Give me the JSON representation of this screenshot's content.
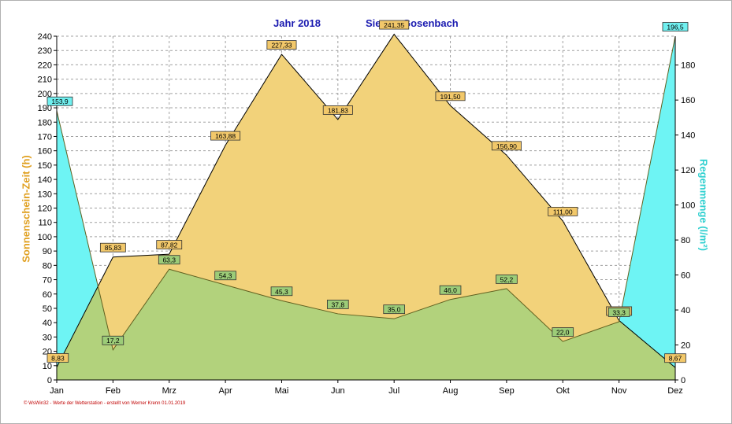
{
  "title": {
    "year": "Jahr  2018",
    "station": "Siegen-Gosenbach"
  },
  "footer": "© WsWin32  -  Werte der Wetterstation  -  erstellt von Werner Krenn   01.01.2019",
  "colors": {
    "sun_fill": "#f2d27a",
    "rain_fill": "#6ef4f4",
    "overlap_fill": "#b2d27c",
    "sun_label_bg": "#f2c86a",
    "rain_label_bg": "#70f0f0",
    "green_label_bg": "#9ccc78",
    "grid": "#a0a0a0",
    "left_axis_label": "#e0a020",
    "right_axis_label": "#30d0d0"
  },
  "chart_data": {
    "type": "area",
    "x": [
      "Jan",
      "Feb",
      "Mrz",
      "Apr",
      "Mai",
      "Jun",
      "Jul",
      "Aug",
      "Sep",
      "Okt",
      "Nov",
      "Dez"
    ],
    "ylabel_left": "Sonnenschein-Zeit  (h)",
    "ylabel_right": "Regenmenge  (l/m²)",
    "ylim_left": [
      0,
      240
    ],
    "ylim_right": [
      0,
      196.5
    ],
    "yticks_left": [
      0,
      10,
      20,
      30,
      40,
      50,
      60,
      70,
      80,
      90,
      100,
      110,
      120,
      130,
      140,
      150,
      160,
      170,
      180,
      190,
      200,
      210,
      220,
      230,
      240
    ],
    "yticks_right": [
      0,
      20,
      40,
      60,
      80,
      100,
      120,
      140,
      160,
      180
    ],
    "grid": true,
    "series": [
      {
        "name": "Sonnenschein-Zeit",
        "axis": "left",
        "values": [
          8.83,
          85.83,
          87.82,
          163.88,
          227.33,
          181.83,
          241.35,
          191.5,
          156.9,
          111.0,
          41.5,
          8.67
        ],
        "labels": [
          "8,83",
          "85,83",
          "87,82",
          "163,88",
          "227,33",
          "181,83",
          "241,35",
          "191,50",
          "156,90",
          "111,00",
          "41,50",
          "8,67"
        ]
      },
      {
        "name": "Regenmenge",
        "axis": "right",
        "values": [
          153.9,
          17.2,
          63.3,
          54.3,
          45.3,
          37.8,
          35.0,
          46.0,
          52.2,
          22.0,
          33.3,
          196.5
        ],
        "labels": [
          "153,9",
          "17,2",
          "63,3",
          "54,3",
          "45,3",
          "37,8",
          "35,0",
          "46,0",
          "52,2",
          "22,0",
          "33,3",
          "196,5"
        ]
      }
    ]
  }
}
